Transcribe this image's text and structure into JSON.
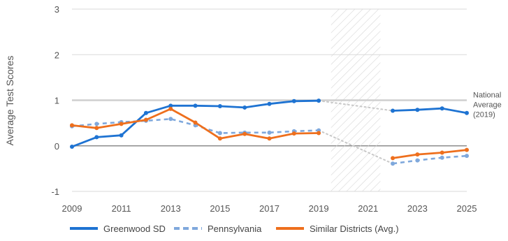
{
  "chart_data": {
    "type": "line",
    "ylabel": "Average Test Scores",
    "ylim": [
      -1,
      3
    ],
    "y_ticks": [
      "3",
      "2",
      "1",
      "0",
      "-1"
    ],
    "y_tick_values": [
      3,
      2,
      1,
      0,
      -1
    ],
    "xlim": [
      2009,
      2025
    ],
    "x_ticks": [
      "2009",
      "2011",
      "2013",
      "2015",
      "2017",
      "2019",
      "2021",
      "2023",
      "2025"
    ],
    "x_tick_values": [
      2009,
      2011,
      2013,
      2015,
      2017,
      2019,
      2021,
      2023,
      2025
    ],
    "gap_period": [
      2019.5,
      2021.5
    ],
    "reference_line": {
      "y": 1,
      "label_lines": [
        "National",
        "Average",
        "(2019)"
      ]
    },
    "series": [
      {
        "name": "Greenwood SD",
        "color": "#1e73d2",
        "style": "solid",
        "segments": [
          {
            "x": [
              2009,
              2010,
              2011,
              2012,
              2013,
              2014,
              2015,
              2016,
              2017,
              2018,
              2019
            ],
            "y": [
              -0.02,
              0.19,
              0.23,
              0.72,
              0.88,
              0.88,
              0.87,
              0.84,
              0.92,
              0.98,
              0.99
            ]
          },
          {
            "x": [
              2022,
              2023,
              2024,
              2025
            ],
            "y": [
              0.77,
              0.79,
              0.82,
              0.72
            ]
          }
        ]
      },
      {
        "name": "Pennsylvania",
        "color": "#7fa8dc",
        "style": "dashed",
        "segments": [
          {
            "x": [
              2009,
              2010,
              2011,
              2012,
              2013,
              2014,
              2015,
              2016,
              2017,
              2018,
              2019
            ],
            "y": [
              0.43,
              0.48,
              0.52,
              0.55,
              0.59,
              0.45,
              0.28,
              0.29,
              0.29,
              0.32,
              0.34
            ]
          },
          {
            "x": [
              2022,
              2023,
              2024,
              2025
            ],
            "y": [
              -0.39,
              -0.32,
              -0.26,
              -0.22
            ]
          }
        ]
      },
      {
        "name": "Similar Districts (Avg.)",
        "color": "#ee6f1d",
        "style": "solid",
        "segments": [
          {
            "x": [
              2009,
              2010,
              2011,
              2012,
              2013,
              2014,
              2015,
              2016,
              2017,
              2018,
              2019
            ],
            "y": [
              0.45,
              0.39,
              0.48,
              0.57,
              0.81,
              0.51,
              0.16,
              0.26,
              0.16,
              0.27,
              0.28
            ]
          },
          {
            "x": [
              2022,
              2023,
              2024,
              2025
            ],
            "y": [
              -0.27,
              -0.19,
              -0.15,
              -0.09
            ]
          }
        ]
      }
    ],
    "gap_connectors": [
      {
        "from": [
          2019,
          0.99
        ],
        "to": [
          2022,
          0.77
        ]
      },
      {
        "from": [
          2019,
          0.34
        ],
        "to": [
          2022,
          -0.39
        ]
      }
    ],
    "legend_position": "bottom",
    "colors": {
      "grid": "#d9d9d9",
      "reference": "#cfcfcf",
      "zero": "#8c8c8c",
      "hatch": "#d6d6d6",
      "connector": "#c8c8c8"
    }
  }
}
